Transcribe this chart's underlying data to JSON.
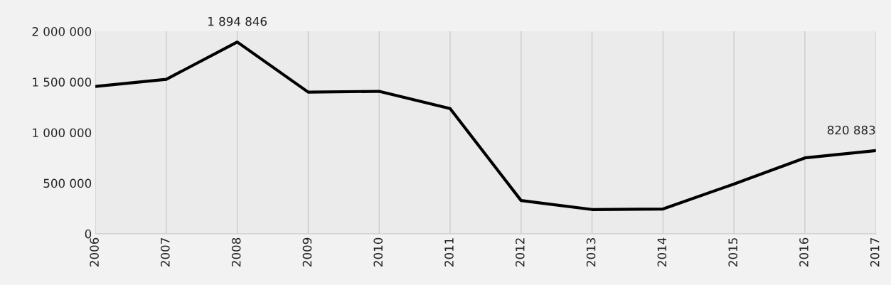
{
  "chart_data": {
    "type": "line",
    "categories": [
      "2006",
      "2007",
      "2008",
      "2009",
      "2010",
      "2011",
      "2012",
      "2013",
      "2014",
      "2015",
      "2016",
      "2017"
    ],
    "series": [
      {
        "color": "#000000",
        "values": [
          1455000,
          1526000,
          1894846,
          1399000,
          1407000,
          1237000,
          328000,
          239000,
          244000,
          491000,
          749000,
          820883
        ],
        "value_labels": [
          null,
          null,
          "1 894 846",
          null,
          null,
          null,
          null,
          null,
          null,
          null,
          null,
          "820 883"
        ]
      }
    ],
    "ylim": [
      0,
      2000000
    ],
    "yticks": [
      {
        "value": 0,
        "label": "0"
      },
      {
        "value": 500000,
        "label": "500 000"
      },
      {
        "value": 1000000,
        "label": "1 000 000"
      },
      {
        "value": 1500000,
        "label": "1 500 000"
      },
      {
        "value": 2000000,
        "label": "2 000 000"
      }
    ],
    "grid": "x",
    "marker": "none",
    "line_style": "solid"
  }
}
